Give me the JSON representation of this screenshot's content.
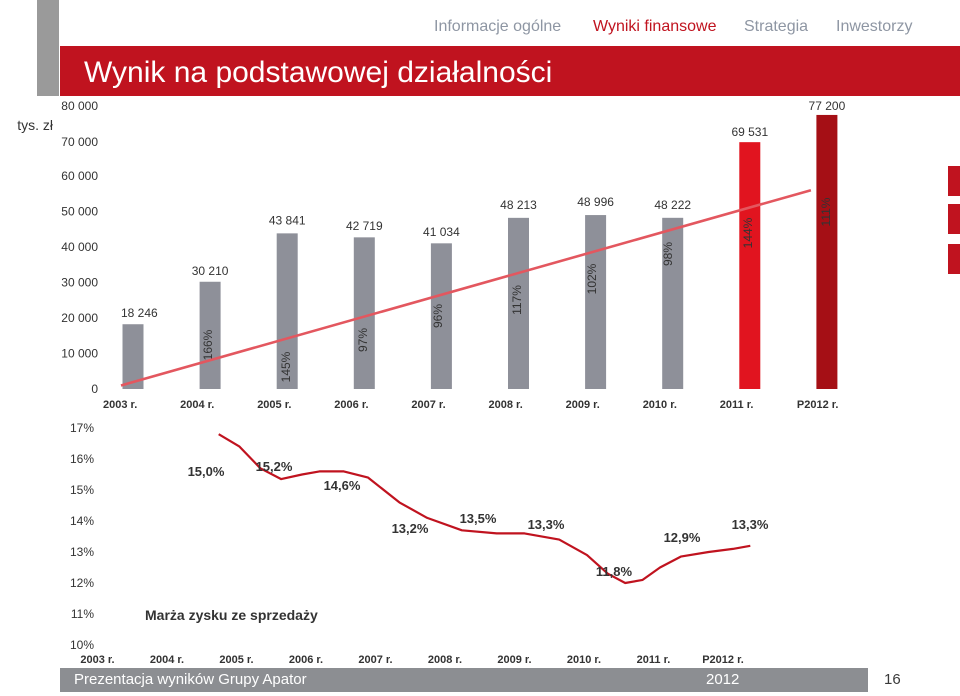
{
  "header": {
    "title": "Wynik na podstawowej działalności",
    "nav": [
      "Informacje ogólne",
      "Wyniki finansowe",
      "Strategia",
      "Inwestorzy"
    ],
    "active_nav": "Wyniki finansowe"
  },
  "footer": {
    "presentation": "Prezentacja wyników Grupy Apator",
    "year": "2012",
    "page": "16"
  },
  "colors": {
    "accent": "#c0131f",
    "bar_grey": "#8e9099",
    "bar_red": "#e1141f",
    "bar_dark_red": "#a50f15",
    "trend": "#e3575f"
  },
  "chart_data": [
    {
      "type": "bar",
      "unit_label": "tys. zł",
      "categories": [
        "2003 r.",
        "2004 r.",
        "2005 r.",
        "2006 r.",
        "2007 r.",
        "2008 r.",
        "2009 r.",
        "2010 r.",
        "2011 r.",
        "P2012 r."
      ],
      "values": [
        18246,
        30210,
        43841,
        42719,
        41034,
        48213,
        48996,
        48222,
        69531,
        77200
      ],
      "value_labels": [
        "18 246",
        "30 210",
        "43 841",
        "42 719",
        "41 034",
        "48 213",
        "48 996",
        "48 222",
        "69 531",
        "77 200"
      ],
      "growth_labels": [
        "",
        "166%",
        "145%",
        "97%",
        "96%",
        "117%",
        "102%",
        "98%",
        "144%",
        "111%"
      ],
      "bar_colors": [
        "#8e9099",
        "#8e9099",
        "#8e9099",
        "#8e9099",
        "#8e9099",
        "#8e9099",
        "#8e9099",
        "#8e9099",
        "#e1141f",
        "#a50f15"
      ],
      "y_ticks": [
        "0",
        "10 000",
        "20 000",
        "30 000",
        "40 000",
        "50 000",
        "60 000",
        "70 000",
        "80 000"
      ],
      "ylim": [
        0,
        80000
      ],
      "trend_line": {
        "from": 1000,
        "to": 56000
      }
    },
    {
      "type": "line",
      "title": "Marża zysku ze sprzedaży",
      "categories": [
        "2003 r.",
        "2004 r.",
        "2005 r.",
        "2006 r.",
        "2007 r.",
        "2008 r.",
        "2009 r.",
        "2010 r.",
        "2011 r.",
        "P2012 r."
      ],
      "labels": [
        "15,0%",
        "15,2%",
        "14,6%",
        "13,2%",
        "13,5%",
        "13,3%",
        "11,8%",
        "12,9%",
        "13,3%"
      ],
      "points": [
        {
          "x": 1.7,
          "y": 16.8
        },
        {
          "x": 2.0,
          "y": 16.4
        },
        {
          "x": 2.3,
          "y": 15.7
        },
        {
          "x": 2.6,
          "y": 15.35
        },
        {
          "x": 2.9,
          "y": 15.5
        },
        {
          "x": 3.15,
          "y": 15.6
        },
        {
          "x": 3.5,
          "y": 15.6
        },
        {
          "x": 3.85,
          "y": 15.4
        },
        {
          "x": 4.3,
          "y": 14.6
        },
        {
          "x": 4.7,
          "y": 14.1
        },
        {
          "x": 5.2,
          "y": 13.7
        },
        {
          "x": 5.7,
          "y": 13.6
        },
        {
          "x": 6.1,
          "y": 13.6
        },
        {
          "x": 6.6,
          "y": 13.4
        },
        {
          "x": 7.0,
          "y": 12.9
        },
        {
          "x": 7.3,
          "y": 12.3
        },
        {
          "x": 7.55,
          "y": 12.0
        },
        {
          "x": 7.8,
          "y": 12.1
        },
        {
          "x": 8.05,
          "y": 12.5
        },
        {
          "x": 8.35,
          "y": 12.85
        },
        {
          "x": 8.75,
          "y": 13.0
        },
        {
          "x": 9.1,
          "y": 13.1
        },
        {
          "x": 9.35,
          "y": 13.2
        }
      ],
      "y_ticks": [
        "10%",
        "11%",
        "12%",
        "13%",
        "14%",
        "15%",
        "16%",
        "17%"
      ],
      "ylim": [
        10,
        17
      ]
    }
  ]
}
